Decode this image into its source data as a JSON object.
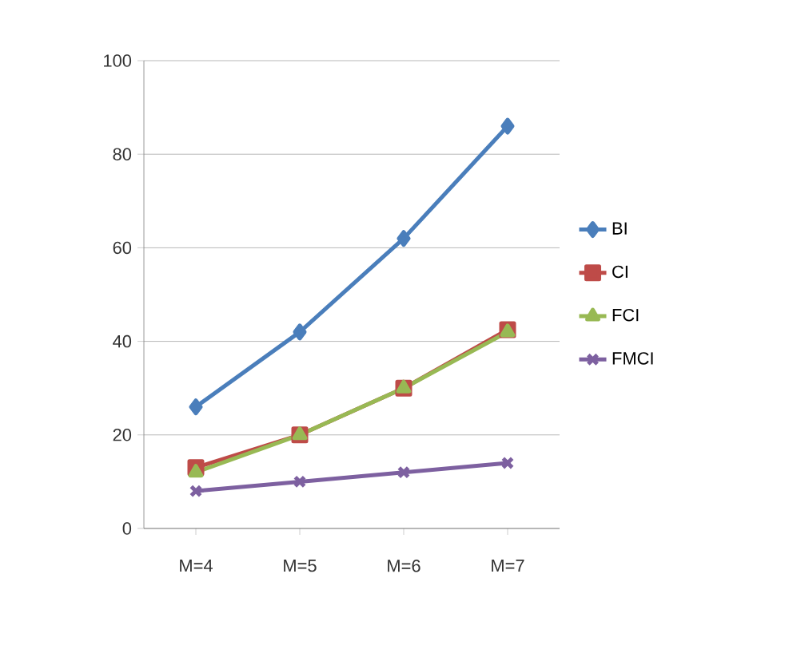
{
  "chart_data": {
    "type": "line",
    "categories": [
      "M=4",
      "M=5",
      "M=6",
      "M=7"
    ],
    "series": [
      {
        "name": "BI",
        "color": "#4a7ebb",
        "marker": "diamond",
        "values": [
          26,
          42,
          62,
          86
        ]
      },
      {
        "name": "CI",
        "color": "#be4b48",
        "marker": "square",
        "values": [
          13,
          20,
          30,
          42.5
        ]
      },
      {
        "name": "FCI",
        "color": "#98b954",
        "marker": "triangle",
        "values": [
          12,
          20,
          30,
          42
        ]
      },
      {
        "name": "FMCI",
        "color": "#7d60a0",
        "marker": "cross",
        "values": [
          8,
          10,
          12,
          14
        ]
      }
    ],
    "ylim": [
      0,
      100
    ],
    "yticks": [
      0,
      20,
      40,
      60,
      80,
      100
    ],
    "grid": "y",
    "legend": "right",
    "line_style": "solid"
  }
}
